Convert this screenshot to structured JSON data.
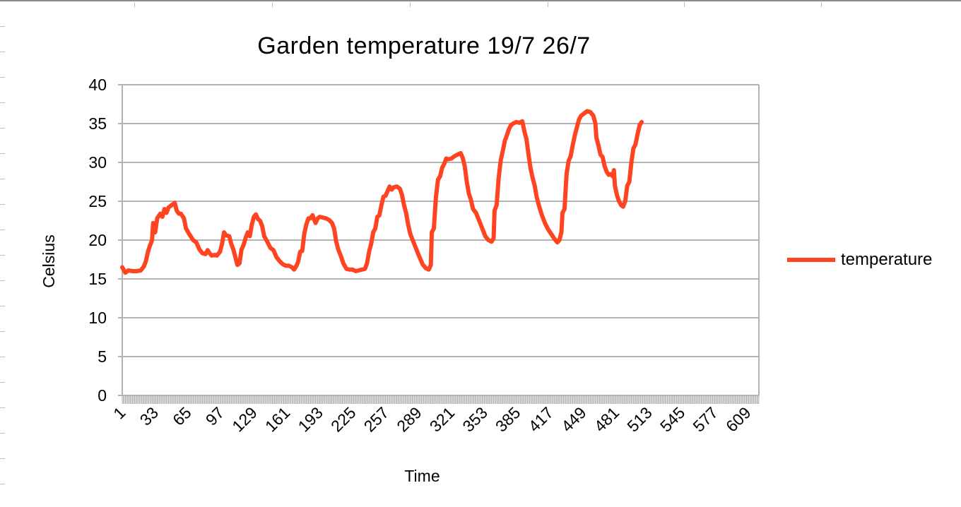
{
  "chart_data": {
    "type": "line",
    "title": "Garden temperature 19/7 26/7",
    "xlabel": "Time",
    "ylabel": "Celsius",
    "ylim": [
      0,
      40
    ],
    "yticks": [
      0,
      5,
      10,
      15,
      20,
      25,
      30,
      35,
      40
    ],
    "xlim": [
      1,
      620
    ],
    "xtick_labels": [
      "1",
      "33",
      "65",
      "97",
      "129",
      "161",
      "193",
      "225",
      "257",
      "289",
      "321",
      "353",
      "385",
      "417",
      "449",
      "481",
      "513",
      "545",
      "577",
      "609"
    ],
    "grid": "horizontal",
    "legend_position": "right",
    "series": [
      {
        "name": "temperature",
        "color": "#ff4422",
        "points": [
          [
            1,
            16.5
          ],
          [
            4,
            15.8
          ],
          [
            7,
            16.1
          ],
          [
            11,
            16.0
          ],
          [
            15,
            16.0
          ],
          [
            19,
            16.1
          ],
          [
            22,
            16.6
          ],
          [
            24,
            17.3
          ],
          [
            26,
            18.5
          ],
          [
            28,
            19.3
          ],
          [
            30,
            20.0
          ],
          [
            31,
            22.2
          ],
          [
            33,
            21.0
          ],
          [
            35,
            22.8
          ],
          [
            38,
            23.4
          ],
          [
            40,
            23.0
          ],
          [
            42,
            24.0
          ],
          [
            44,
            23.5
          ],
          [
            46,
            24.2
          ],
          [
            49,
            24.5
          ],
          [
            52,
            24.8
          ],
          [
            54,
            23.8
          ],
          [
            56,
            23.4
          ],
          [
            58,
            23.4
          ],
          [
            61,
            22.8
          ],
          [
            63,
            21.5
          ],
          [
            66,
            20.8
          ],
          [
            70,
            20.0
          ],
          [
            73,
            19.7
          ],
          [
            76,
            18.8
          ],
          [
            79,
            18.3
          ],
          [
            82,
            18.2
          ],
          [
            84,
            18.7
          ],
          [
            86,
            18.3
          ],
          [
            88,
            18.0
          ],
          [
            91,
            18.1
          ],
          [
            93,
            18.0
          ],
          [
            96,
            18.5
          ],
          [
            98,
            19.5
          ],
          [
            100,
            21.0
          ],
          [
            102,
            20.6
          ],
          [
            105,
            20.5
          ],
          [
            107,
            19.5
          ],
          [
            109,
            18.8
          ],
          [
            111,
            17.8
          ],
          [
            113,
            16.8
          ],
          [
            115,
            17.0
          ],
          [
            117,
            18.8
          ],
          [
            119,
            19.4
          ],
          [
            121,
            20.3
          ],
          [
            123,
            21.0
          ],
          [
            125,
            20.5
          ],
          [
            127,
            22.0
          ],
          [
            129,
            23.0
          ],
          [
            131,
            23.3
          ],
          [
            133,
            22.7
          ],
          [
            135,
            22.5
          ],
          [
            137,
            21.8
          ],
          [
            139,
            20.5
          ],
          [
            142,
            19.8
          ],
          [
            145,
            19.0
          ],
          [
            148,
            18.7
          ],
          [
            151,
            17.8
          ],
          [
            154,
            17.3
          ],
          [
            157,
            16.9
          ],
          [
            160,
            16.7
          ],
          [
            163,
            16.7
          ],
          [
            166,
            16.5
          ],
          [
            168,
            16.2
          ],
          [
            170,
            16.6
          ],
          [
            172,
            17.2
          ],
          [
            174,
            18.5
          ],
          [
            176,
            18.6
          ],
          [
            178,
            20.8
          ],
          [
            180,
            22.0
          ],
          [
            182,
            22.8
          ],
          [
            184,
            22.8
          ],
          [
            186,
            23.2
          ],
          [
            188,
            22.5
          ],
          [
            189,
            22.2
          ],
          [
            191,
            22.8
          ],
          [
            193,
            23.0
          ],
          [
            196,
            22.9
          ],
          [
            199,
            22.8
          ],
          [
            202,
            22.6
          ],
          [
            205,
            22.2
          ],
          [
            207,
            21.5
          ],
          [
            209,
            19.8
          ],
          [
            211,
            18.8
          ],
          [
            214,
            17.8
          ],
          [
            216,
            17.0
          ],
          [
            219,
            16.3
          ],
          [
            222,
            16.2
          ],
          [
            225,
            16.2
          ],
          [
            228,
            16.0
          ],
          [
            231,
            16.1
          ],
          [
            234,
            16.2
          ],
          [
            237,
            16.3
          ],
          [
            239,
            17.0
          ],
          [
            241,
            18.5
          ],
          [
            243,
            19.5
          ],
          [
            245,
            21.0
          ],
          [
            247,
            21.5
          ],
          [
            249,
            23.0
          ],
          [
            251,
            23.2
          ],
          [
            253,
            24.5
          ],
          [
            255,
            25.6
          ],
          [
            257,
            25.7
          ],
          [
            259,
            26.3
          ],
          [
            261,
            26.9
          ],
          [
            263,
            26.5
          ],
          [
            265,
            26.8
          ],
          [
            268,
            26.9
          ],
          [
            271,
            26.6
          ],
          [
            273,
            25.8
          ],
          [
            275,
            24.5
          ],
          [
            277,
            23.5
          ],
          [
            279,
            22.0
          ],
          [
            281,
            20.8
          ],
          [
            284,
            19.8
          ],
          [
            287,
            18.8
          ],
          [
            290,
            17.8
          ],
          [
            293,
            16.9
          ],
          [
            296,
            16.4
          ],
          [
            299,
            16.2
          ],
          [
            301,
            16.8
          ],
          [
            302,
            21.0
          ],
          [
            304,
            21.5
          ],
          [
            306,
            25.5
          ],
          [
            308,
            27.8
          ],
          [
            310,
            28.2
          ],
          [
            312,
            29.3
          ],
          [
            314,
            29.8
          ],
          [
            316,
            30.5
          ],
          [
            318,
            30.4
          ],
          [
            321,
            30.5
          ],
          [
            324,
            30.8
          ],
          [
            327,
            31.0
          ],
          [
            330,
            31.2
          ],
          [
            332,
            30.6
          ],
          [
            334,
            29.5
          ],
          [
            336,
            27.5
          ],
          [
            338,
            26.0
          ],
          [
            340,
            25.2
          ],
          [
            342,
            24.0
          ],
          [
            345,
            23.5
          ],
          [
            348,
            22.5
          ],
          [
            351,
            21.5
          ],
          [
            354,
            20.5
          ],
          [
            357,
            20.0
          ],
          [
            360,
            19.8
          ],
          [
            362,
            20.2
          ],
          [
            363,
            23.8
          ],
          [
            365,
            24.5
          ],
          [
            367,
            28.0
          ],
          [
            369,
            30.3
          ],
          [
            371,
            31.5
          ],
          [
            373,
            32.8
          ],
          [
            375,
            33.5
          ],
          [
            377,
            34.3
          ],
          [
            379,
            34.8
          ],
          [
            381,
            35.0
          ],
          [
            384,
            35.2
          ],
          [
            387,
            35.1
          ],
          [
            390,
            35.3
          ],
          [
            392,
            34.0
          ],
          [
            394,
            33.0
          ],
          [
            396,
            31.0
          ],
          [
            398,
            29.2
          ],
          [
            400,
            28.0
          ],
          [
            402,
            27.0
          ],
          [
            404,
            25.5
          ],
          [
            406,
            24.5
          ],
          [
            409,
            23.2
          ],
          [
            412,
            22.2
          ],
          [
            415,
            21.4
          ],
          [
            418,
            20.8
          ],
          [
            421,
            20.2
          ],
          [
            424,
            19.7
          ],
          [
            426,
            20.0
          ],
          [
            428,
            21.0
          ],
          [
            429,
            23.5
          ],
          [
            431,
            24.0
          ],
          [
            433,
            28.5
          ],
          [
            435,
            30.2
          ],
          [
            437,
            30.8
          ],
          [
            439,
            32.2
          ],
          [
            441,
            33.5
          ],
          [
            443,
            34.5
          ],
          [
            445,
            35.5
          ],
          [
            447,
            36.0
          ],
          [
            450,
            36.3
          ],
          [
            453,
            36.6
          ],
          [
            456,
            36.5
          ],
          [
            459,
            36.0
          ],
          [
            461,
            35.0
          ],
          [
            462,
            33.2
          ],
          [
            464,
            32.2
          ],
          [
            466,
            31.0
          ],
          [
            468,
            30.7
          ],
          [
            470,
            29.5
          ],
          [
            472,
            28.8
          ],
          [
            474,
            28.4
          ],
          [
            476,
            28.5
          ],
          [
            478,
            28.2
          ],
          [
            479,
            29.0
          ],
          [
            480,
            27.0
          ],
          [
            482,
            25.8
          ],
          [
            484,
            25.0
          ],
          [
            486,
            24.5
          ],
          [
            488,
            24.3
          ],
          [
            490,
            25.0
          ],
          [
            492,
            27.0
          ],
          [
            494,
            27.5
          ],
          [
            496,
            30.0
          ],
          [
            498,
            31.8
          ],
          [
            500,
            32.3
          ],
          [
            502,
            33.6
          ],
          [
            504,
            34.8
          ],
          [
            506,
            35.2
          ]
        ]
      }
    ]
  },
  "legend": {
    "items": [
      {
        "label": "temperature",
        "color": "#ff4422"
      }
    ]
  }
}
